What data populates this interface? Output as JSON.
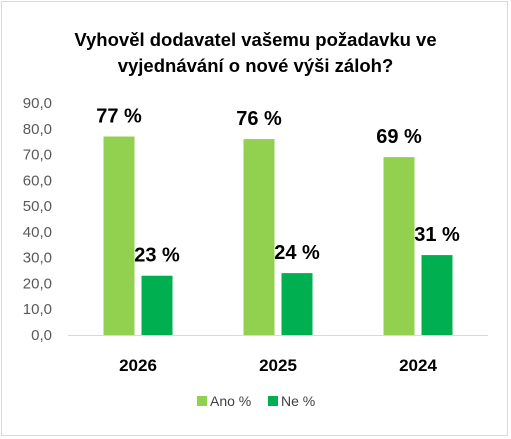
{
  "chart_data": {
    "type": "bar",
    "title_lines": [
      "Vyhověl dodavatel vašemu požadavku ve",
      "vyjednávání o nové výši záloh?"
    ],
    "categories": [
      "2026",
      "2025",
      "2024"
    ],
    "series": [
      {
        "name": "Ano %",
        "color": "#92d050",
        "values": [
          77,
          76,
          69
        ],
        "labels": [
          "77 %",
          "76 %",
          "69 %"
        ]
      },
      {
        "name": "Ne %",
        "color": "#00b050",
        "values": [
          23,
          24,
          31
        ],
        "labels": [
          "23 %",
          "24 %",
          "31 %"
        ]
      }
    ],
    "ylim": [
      0,
      90
    ],
    "yticks": [
      "0,0",
      "10,0",
      "20,0",
      "30,0",
      "40,0",
      "50,0",
      "60,0",
      "70,0",
      "80,0",
      "90,0"
    ],
    "grid": false,
    "legend_position": "bottom"
  }
}
